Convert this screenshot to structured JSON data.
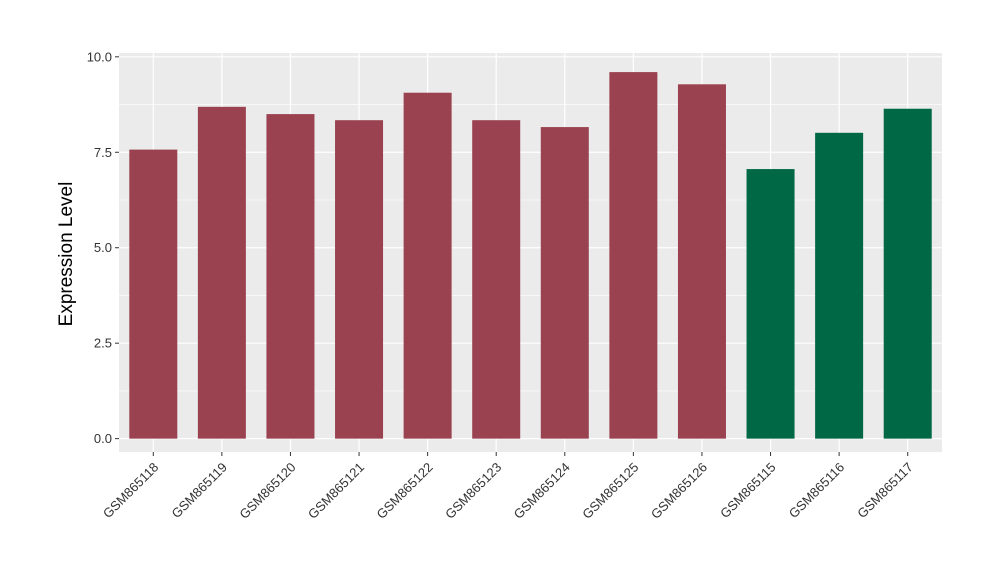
{
  "chart_data": {
    "type": "bar",
    "title": "",
    "xlabel": "",
    "ylabel": "Expression Level",
    "ylim": [
      -0.35,
      10.1
    ],
    "yticks": [
      0.0,
      2.5,
      5.0,
      7.5,
      10.0
    ],
    "ytick_labels": [
      "0.0",
      "2.5",
      "5.0",
      "7.5",
      "10.0"
    ],
    "grid": true,
    "legend": "none",
    "categories": [
      "GSM865118",
      "GSM865119",
      "GSM865120",
      "GSM865121",
      "GSM865122",
      "GSM865123",
      "GSM865124",
      "GSM865125",
      "GSM865126",
      "GSM865115",
      "GSM865116",
      "GSM865117"
    ],
    "values": [
      7.57,
      8.69,
      8.5,
      8.34,
      9.06,
      8.34,
      8.16,
      9.6,
      9.28,
      7.06,
      8.01,
      8.64
    ],
    "bar_colors": [
      "#9A4250",
      "#9A4250",
      "#9A4250",
      "#9A4250",
      "#9A4250",
      "#9A4250",
      "#9A4250",
      "#9A4250",
      "#9A4250",
      "#006845",
      "#006845",
      "#006845"
    ],
    "panel_background": "#EBEBEB",
    "grid_color": "#FFFFFF"
  }
}
